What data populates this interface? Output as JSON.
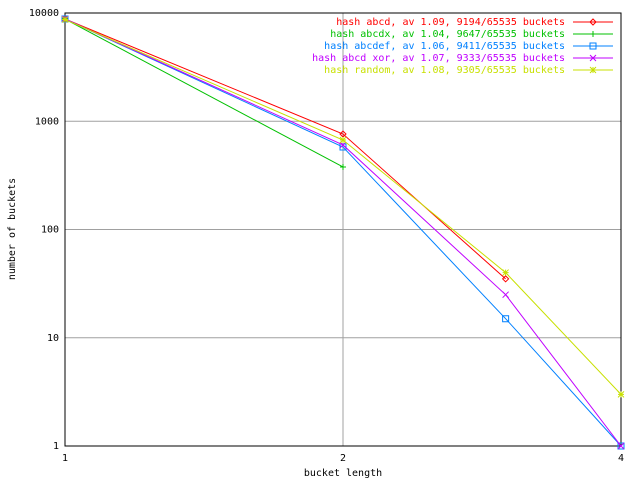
{
  "chart_data": {
    "type": "line",
    "xlabel": "bucket length",
    "ylabel": "number of buckets",
    "x": [
      1,
      2,
      3,
      4
    ],
    "xscale": "log",
    "yscale": "log",
    "xlim": [
      1,
      4
    ],
    "ylim": [
      1,
      10000
    ],
    "xticks": [
      1,
      2,
      4
    ],
    "yticks": [
      1,
      10,
      100,
      1000,
      10000
    ],
    "grid": true,
    "legend": "top-right",
    "series": [
      {
        "name": "hash abcd, av 1.09, 9194/65535 buckets",
        "color": "#ff0000",
        "marker": "diamond",
        "values": [
          8800,
          762,
          35,
          null
        ]
      },
      {
        "name": "hash abcdx, av 1.04, 9647/65535 buckets",
        "color": "#00c000",
        "marker": "plus",
        "values": [
          8800,
          378,
          null,
          null
        ]
      },
      {
        "name": "hash abcdef, av 1.06, 9411/65535 buckets",
        "color": "#0080ff",
        "marker": "square",
        "values": [
          8800,
          578,
          15,
          1
        ]
      },
      {
        "name": "hash abcd xor, av 1.07, 9333/65535 buckets",
        "color": "#c000ff",
        "marker": "cross",
        "values": [
          8800,
          604,
          25,
          1
        ]
      },
      {
        "name": "hash random, av 1.08, 9305/65535 buckets",
        "color": "#c8e000",
        "marker": "star",
        "values": [
          8700,
          671,
          40,
          3
        ]
      }
    ]
  }
}
